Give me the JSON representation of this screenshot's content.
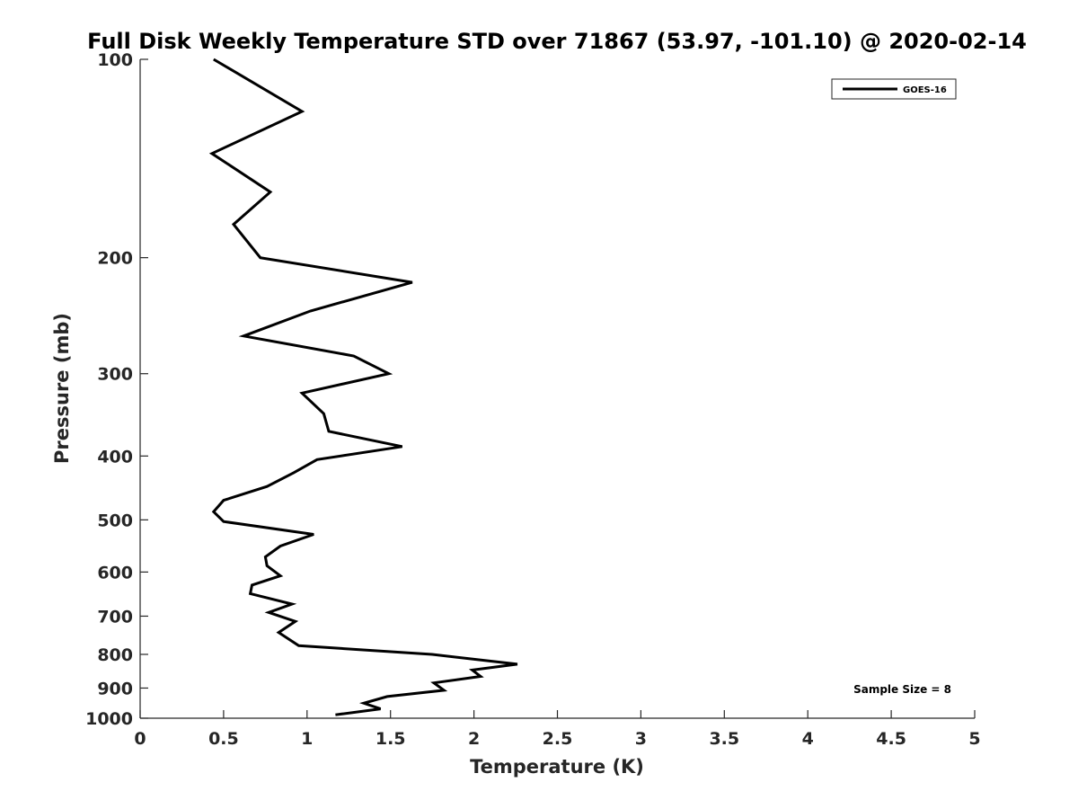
{
  "chart_data": {
    "type": "line",
    "title": "Full Disk Weekly Temperature STD over 71867 (53.97, -101.10) @ 2020-02-14",
    "xlabel": "Temperature (K)",
    "ylabel": "Pressure (mb)",
    "xlim": [
      0,
      5
    ],
    "ylim": [
      1000,
      100
    ],
    "y_scale": "log",
    "x_ticks": [
      "0",
      "0.5",
      "1",
      "1.5",
      "2",
      "2.5",
      "3",
      "3.5",
      "4",
      "4.5",
      "5"
    ],
    "y_ticks": [
      "100",
      "200",
      "300",
      "400",
      "500",
      "600",
      "700",
      "800",
      "900",
      "1000"
    ],
    "grid": false,
    "legend_position": "top-right",
    "annotation": "Sample Size = 8",
    "series": [
      {
        "name": "GOES-16",
        "color": "#000000",
        "x": [
          0.44,
          0.97,
          0.43,
          0.78,
          0.56,
          0.72,
          1.63,
          1.02,
          0.62,
          1.28,
          1.49,
          0.97,
          1.1,
          1.13,
          1.57,
          1.06,
          0.92,
          0.76,
          0.5,
          0.44,
          0.5,
          1.04,
          0.84,
          0.75,
          0.76,
          0.84,
          0.67,
          0.66,
          0.91,
          0.77,
          0.93,
          0.83,
          0.95,
          1.75,
          2.26,
          1.99,
          2.04,
          1.76,
          1.82,
          1.48,
          1.34,
          1.44,
          1.17
        ],
        "y": [
          100,
          120,
          139,
          159,
          178,
          200,
          218,
          241,
          263,
          282,
          300,
          321,
          345,
          367,
          387,
          405,
          424,
          445,
          467,
          486,
          503,
          526,
          548,
          569,
          587,
          608,
          628,
          647,
          671,
          691,
          713,
          741,
          776,
          800,
          828,
          845,
          864,
          884,
          907,
          927,
          949,
          968,
          988
        ]
      }
    ]
  }
}
